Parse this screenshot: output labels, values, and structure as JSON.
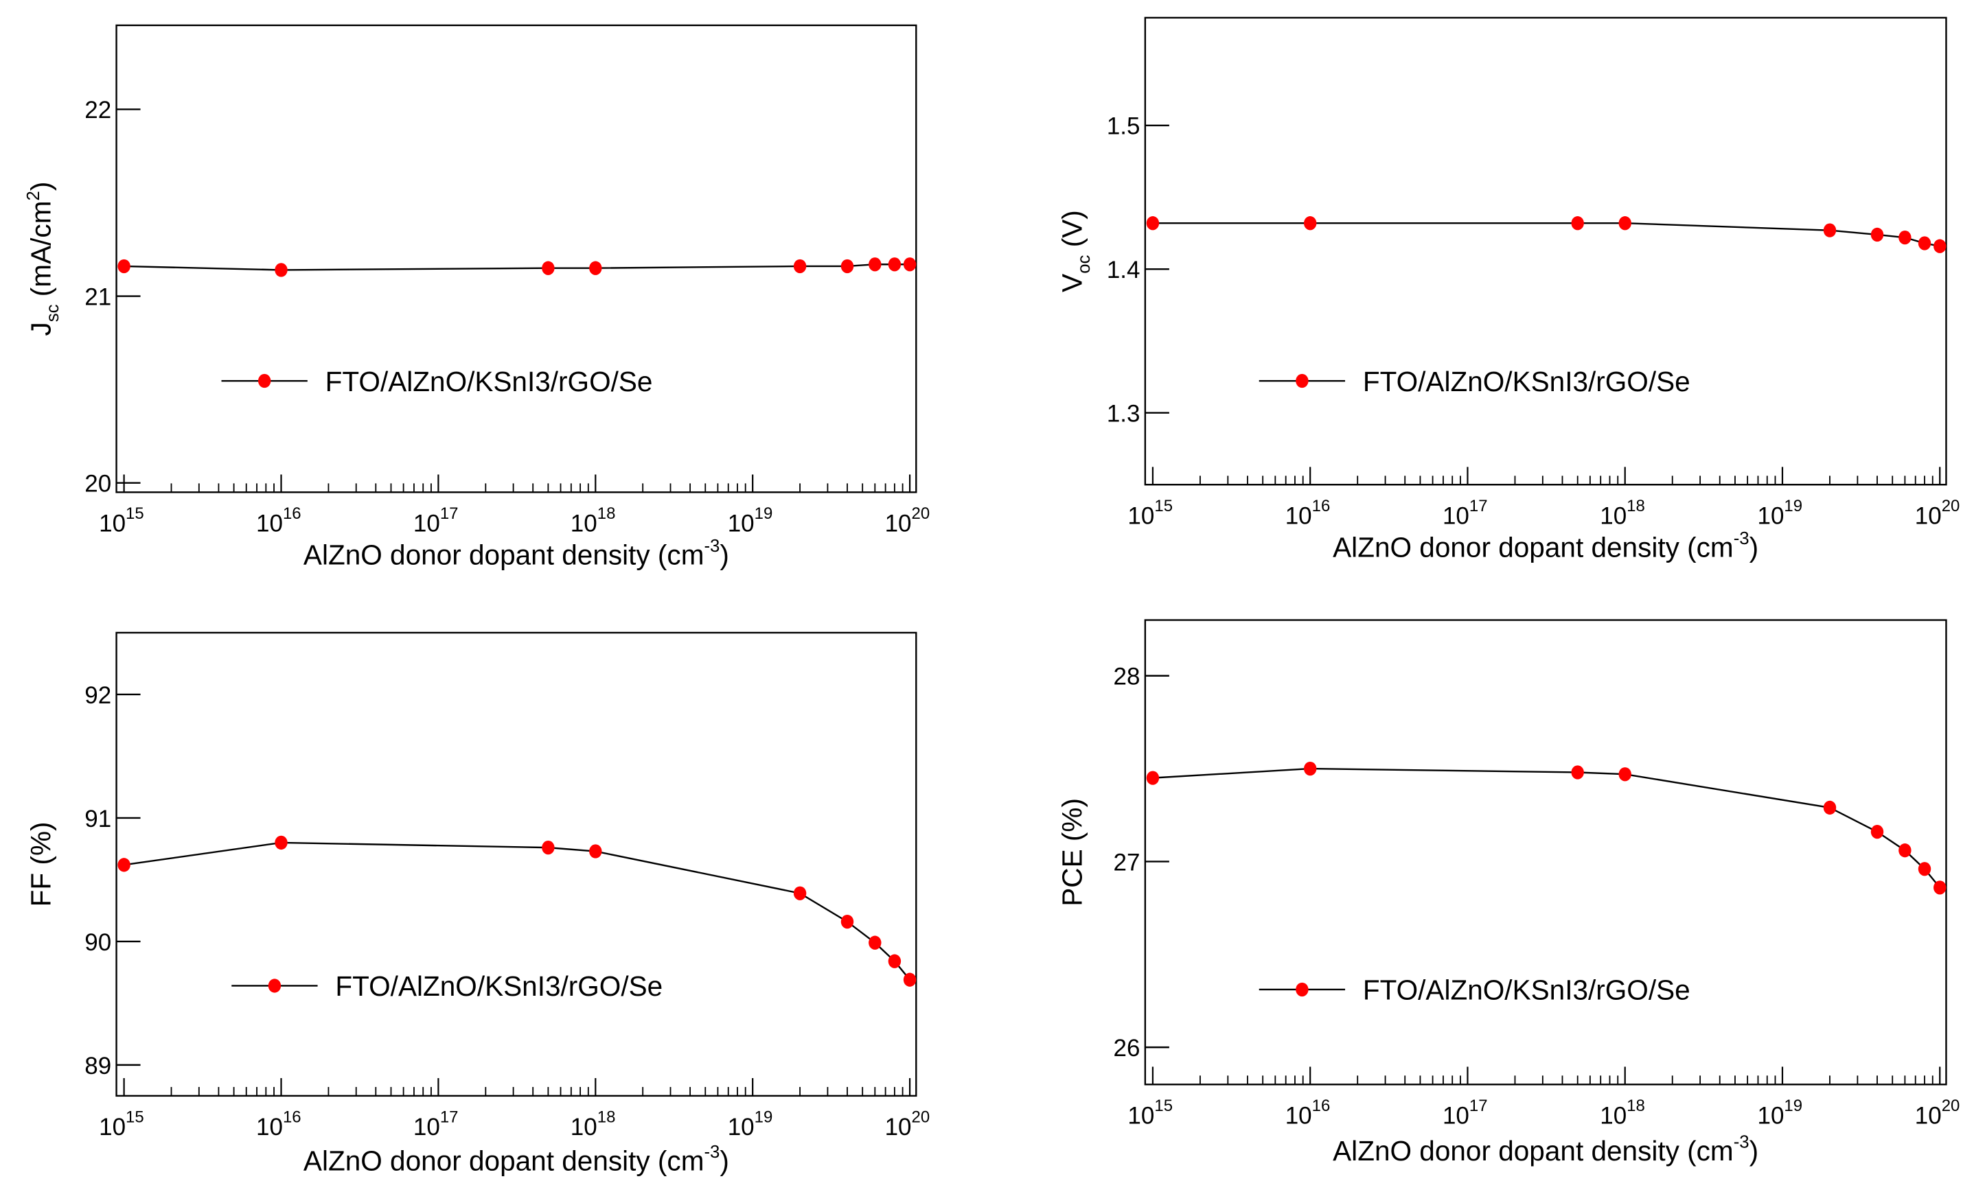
{
  "figure": {
    "legend_label": "FTO/AlZnO/KSnI3/rGO/Se",
    "xlabel_main": "AlZnO donor dopant density (cm",
    "xlabel_exp": "-3",
    "xlabel_close": ")",
    "x_tick_base": "10",
    "x_tick_exponents": [
      "15",
      "16",
      "17",
      "18",
      "19",
      "20"
    ],
    "marker_color": "#ff0000",
    "line_color": "#000000"
  },
  "chart_data": [
    {
      "type": "line",
      "title": "",
      "xlabel": "AlZnO donor dopant density (cm^-3)",
      "ylabel": "J_sc (mA/cm^2)",
      "xscale": "log",
      "xlim": [
        1000000000000000.0,
        1e+20
      ],
      "ylim": [
        19.95,
        22.45
      ],
      "yticks": [
        "20",
        "21",
        "22"
      ],
      "grid": false,
      "legend": {
        "entries": [
          "FTO/AlZnO/KSnI3/rGO/Se"
        ],
        "position": "middle-left"
      },
      "series": [
        {
          "name": "FTO/AlZnO/KSnI3/rGO/Se",
          "x": [
            1000000000000000.0,
            1e+16,
            5e+17,
            1e+18,
            2e+19,
            4e+19,
            6e+19,
            8e+19,
            1e+20
          ],
          "values": [
            21.16,
            21.14,
            21.15,
            21.15,
            21.16,
            21.16,
            21.17,
            21.17,
            21.17
          ]
        }
      ]
    },
    {
      "type": "line",
      "title": "",
      "xlabel": "AlZnO donor dopant density (cm^-3)",
      "ylabel": "V_oc (V)",
      "xscale": "log",
      "xlim": [
        1000000000000000.0,
        1e+20
      ],
      "ylim": [
        1.25,
        1.575
      ],
      "yticks": [
        "1.3",
        "1.4",
        "1.5"
      ],
      "grid": false,
      "legend": {
        "entries": [
          "FTO/AlZnO/KSnI3/rGO/Se"
        ],
        "position": "lower-middle"
      },
      "series": [
        {
          "name": "FTO/AlZnO/KSnI3/rGO/Se",
          "x": [
            1000000000000000.0,
            1e+16,
            5e+17,
            1e+18,
            2e+19,
            4e+19,
            6e+19,
            8e+19,
            1e+20
          ],
          "values": [
            1.432,
            1.432,
            1.432,
            1.432,
            1.427,
            1.424,
            1.422,
            1.418,
            1.416
          ]
        }
      ]
    },
    {
      "type": "line",
      "title": "",
      "xlabel": "AlZnO donor dopant density (cm^-3)",
      "ylabel": "FF (%)",
      "xscale": "log",
      "xlim": [
        1000000000000000.0,
        1e+20
      ],
      "ylim": [
        88.75,
        92.5
      ],
      "yticks": [
        "89",
        "90",
        "91",
        "92"
      ],
      "grid": false,
      "legend": {
        "entries": [
          "FTO/AlZnO/KSnI3/rGO/Se"
        ],
        "position": "lower-middle"
      },
      "series": [
        {
          "name": "FTO/AlZnO/KSnI3/rGO/Se",
          "x": [
            1000000000000000.0,
            1e+16,
            5e+17,
            1e+18,
            2e+19,
            4e+19,
            6e+19,
            8e+19,
            1e+20
          ],
          "values": [
            90.62,
            90.8,
            90.76,
            90.73,
            90.39,
            90.16,
            89.99,
            89.84,
            89.69
          ]
        }
      ]
    },
    {
      "type": "line",
      "title": "",
      "xlabel": "AlZnO donor dopant density (cm^-3)",
      "ylabel": "PCE (%)",
      "xscale": "log",
      "xlim": [
        1000000000000000.0,
        1e+20
      ],
      "ylim": [
        25.8,
        28.3
      ],
      "yticks": [
        "26",
        "27",
        "28"
      ],
      "grid": false,
      "legend": {
        "entries": [
          "FTO/AlZnO/KSnI3/rGO/Se"
        ],
        "position": "lower-middle"
      },
      "series": [
        {
          "name": "FTO/AlZnO/KSnI3/rGO/Se",
          "x": [
            1000000000000000.0,
            1e+16,
            5e+17,
            1e+18,
            2e+19,
            4e+19,
            6e+19,
            8e+19,
            1e+20
          ],
          "values": [
            27.45,
            27.5,
            27.48,
            27.47,
            27.29,
            27.16,
            27.06,
            26.96,
            26.86
          ]
        }
      ]
    }
  ],
  "panels": [
    {
      "id": "jsc",
      "ylabel_main": "J",
      "ylabel_sub": "sc",
      "ylabel_rest": " (mA/cm",
      "ylabel_sup": "2",
      "ylabel_end": ")"
    },
    {
      "id": "voc",
      "ylabel_main": "V",
      "ylabel_sub": "oc",
      "ylabel_rest": " (V)",
      "ylabel_sup": "",
      "ylabel_end": ""
    },
    {
      "id": "ff",
      "ylabel_main": "FF (%)",
      "ylabel_sub": "",
      "ylabel_rest": "",
      "ylabel_sup": "",
      "ylabel_end": ""
    },
    {
      "id": "pce",
      "ylabel_main": "PCE (%)",
      "ylabel_sub": "",
      "ylabel_rest": "",
      "ylabel_sup": "",
      "ylabel_end": ""
    }
  ]
}
